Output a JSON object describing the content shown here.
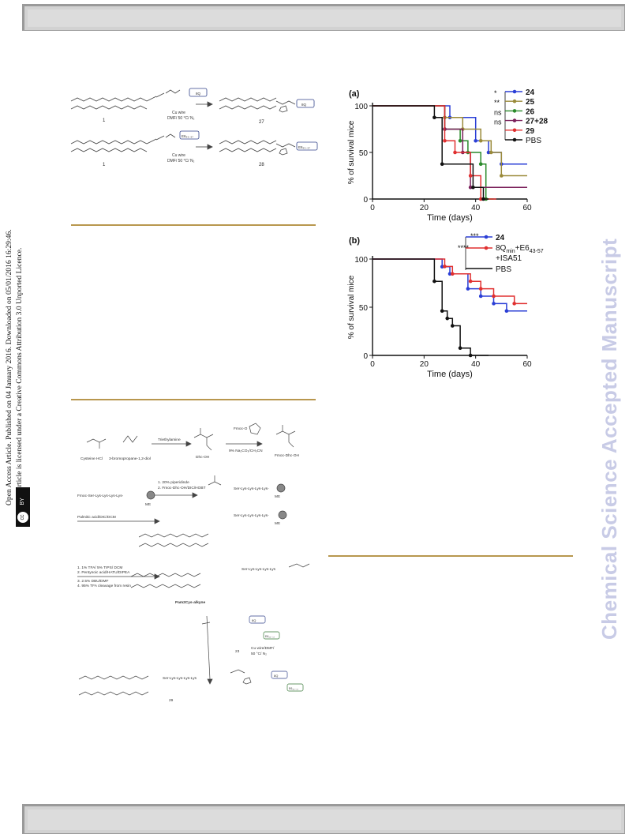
{
  "sidebar": {
    "line1": "Open Access Article. Published on 04 January 2016. Downloaded on 05/01/2016 16:29:46.",
    "line2": "This article is licensed under a Creative Commons Attribution 3.0 Unported Licence.",
    "cc_label": "cc",
    "by_label": "BY"
  },
  "watermark": "Chemical Science Accepted Manuscript",
  "scheme_top": {
    "compound_1a": "1",
    "compound_27": "27",
    "reagent_1": "Cu wire",
    "cond_1": "DMF/ 50 °C/ N₂",
    "tag_1": "8Q",
    "compound_1b": "1",
    "compound_28": "28",
    "reagent_2": "Cu wire",
    "cond_2": "DMF/ 50 °C/ N₂",
    "tag_2": "E6₄₃₋₅₇",
    "tag_2b": "E6₄₃₋₅₇"
  },
  "scheme_bottom": {
    "cys": "Cysteine HCl",
    "bromo": "3-bromopropane-1,2-diol",
    "tea": "Triethylamine",
    "dhc": "Dhc-OH",
    "fmoc_osu": "Fmoc-O",
    "na2co3": "9% Na₂CO₃/CH₃CN",
    "fmoc_dhc": "Fmoc-Dhc-OH",
    "step1a": "1. 20% piperidinde",
    "step1b": "2. Fmoc-Dhc-OH/DIC/HOBT",
    "resin_seq": "Fmoc-Ser-Lys-Lys-Lys-Lys-",
    "mtt": "Mtt",
    "seq2": "Ser-Lys-Lys-Lys-Lys-",
    "palm": "Palmitic acid/DIC/DCM",
    "step2a": "1. 1% TFA/ 5% TIPS/ DCM",
    "step2b": "2. Pentynoic acid/HATU/DIPEA",
    "step2c": "3. 2.5% DBU/DMF",
    "step2d": "4. 95% TFA cleavage from resin",
    "seq3": "Ser-Lys-Lys-Lys-Lys",
    "pam2cys": "Pam2Cys-alkyne",
    "n23": "23",
    "cu2": "Cu wire/DMF/",
    "cu2b": "50 °C/ N₂",
    "seq4": "Ser-Lys-Lys-Lys-Lys",
    "n29": "29",
    "tag_8q": "8Q",
    "tag_e6": "E6₄₃₋₅₇"
  },
  "chart_data": [
    {
      "type": "line",
      "panel": "(a)",
      "xlabel": "Time (days)",
      "ylabel": "% of survival mice",
      "xlim": [
        0,
        60
      ],
      "ylim": [
        0,
        100
      ],
      "xticks": [
        0,
        20,
        40,
        60
      ],
      "yticks": [
        0,
        50,
        100
      ],
      "legend_position": "top-right",
      "series": [
        {
          "name": "24",
          "color": "#2b3fd6",
          "x": [
            0,
            30,
            30,
            40,
            40,
            45,
            45,
            50,
            50,
            60
          ],
          "y": [
            100,
            100,
            87.5,
            87.5,
            62.5,
            62.5,
            50,
            50,
            37.5,
            37.5
          ]
        },
        {
          "name": "25",
          "color": "#9a8a3a",
          "x": [
            0,
            28,
            28,
            35,
            35,
            42,
            42,
            46,
            46,
            50,
            50,
            60
          ],
          "y": [
            100,
            100,
            87.5,
            87.5,
            75,
            75,
            62.5,
            62.5,
            50,
            50,
            25,
            25
          ]
        },
        {
          "name": "26",
          "color": "#2a8a2a",
          "x": [
            0,
            28,
            28,
            34,
            34,
            37,
            37,
            42,
            42,
            44,
            44,
            47
          ],
          "y": [
            100,
            100,
            75,
            75,
            62.5,
            62.5,
            50,
            50,
            37.5,
            37.5,
            0,
            0
          ]
        },
        {
          "name": "27+28",
          "color": "#7a1f5a",
          "x": [
            0,
            28,
            28,
            35,
            35,
            38,
            38,
            41,
            41,
            60
          ],
          "y": [
            100,
            100,
            75,
            75,
            50,
            50,
            12.5,
            12.5,
            12.5,
            12.5
          ]
        },
        {
          "name": "29",
          "color": "#e03030",
          "x": [
            0,
            28,
            28,
            32,
            32,
            38,
            38,
            42,
            42,
            48
          ],
          "y": [
            100,
            100,
            62.5,
            62.5,
            50,
            50,
            25,
            25,
            0,
            0
          ]
        },
        {
          "name": "PBS",
          "color": "#111111",
          "x": [
            0,
            24,
            24,
            27,
            27,
            39,
            39,
            43,
            43,
            45
          ],
          "y": [
            100,
            100,
            87.5,
            87.5,
            37.5,
            37.5,
            12.5,
            12.5,
            0,
            0
          ]
        }
      ],
      "significance": [
        "*",
        "**",
        "ns",
        "ns",
        ""
      ]
    },
    {
      "type": "line",
      "panel": "(b)",
      "xlabel": "Time (days)",
      "ylabel": "% of survival mice",
      "xlim": [
        0,
        60
      ],
      "ylim": [
        0,
        100
      ],
      "xticks": [
        0,
        20,
        40,
        60
      ],
      "yticks": [
        0,
        50,
        100
      ],
      "legend_position": "top-right",
      "series": [
        {
          "name": "24",
          "color": "#2b3fd6",
          "x": [
            0,
            27,
            27,
            30,
            30,
            37,
            37,
            42,
            42,
            47,
            47,
            52,
            52,
            60
          ],
          "y": [
            100,
            100,
            92,
            92,
            84.6,
            84.6,
            69.2,
            69.2,
            61.5,
            61.5,
            53.8,
            53.8,
            46.1,
            46.1
          ]
        },
        {
          "name": "8Qmin+E6 43-57 +ISA51",
          "color": "#e03030",
          "x": [
            0,
            28,
            28,
            31,
            31,
            38,
            38,
            42,
            42,
            47,
            47,
            55,
            55,
            60
          ],
          "y": [
            100,
            100,
            92.3,
            92.3,
            84.6,
            84.6,
            76.9,
            76.9,
            69.2,
            69.2,
            61.5,
            61.5,
            53.8,
            53.8
          ]
        },
        {
          "name": "PBS",
          "color": "#111111",
          "x": [
            0,
            24,
            24,
            27,
            27,
            29,
            29,
            31,
            31,
            34,
            34,
            38,
            38,
            45,
            45
          ],
          "y": [
            100,
            100,
            76.9,
            76.9,
            46.1,
            46.1,
            38.4,
            38.4,
            30.7,
            30.7,
            7.6,
            7.6,
            0,
            0,
            0
          ]
        }
      ],
      "legend_labels": {
        "l1": "24",
        "l2a": "8Q",
        "l2sub": "min",
        "l2b": "+E6",
        "l2sub2": "43-57",
        "l3": "+ISA51",
        "l4": "PBS"
      },
      "significance": [
        "***",
        "****"
      ]
    }
  ]
}
